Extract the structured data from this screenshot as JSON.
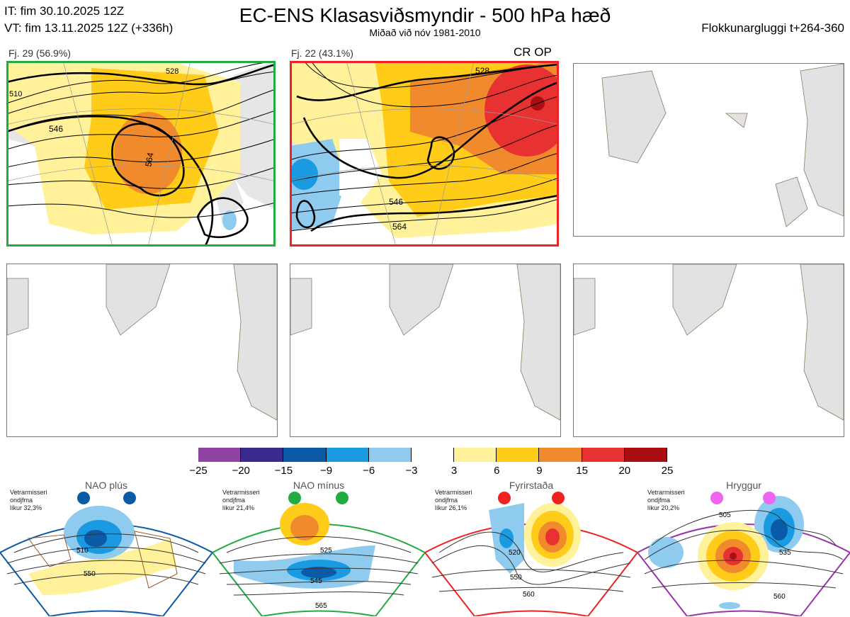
{
  "header": {
    "it_line": "IT: fim 30.10.2025 12Z",
    "vt_line": "VT: fim 13.11.2025 12Z  (+336h)",
    "title": "EC-ENS Klasasviðsmyndir - 500 hPa hæð",
    "subtitle": "Miðað við nóv 1981-2010",
    "window_label": "Flokkunargluggi t+264-360"
  },
  "panels": [
    {
      "label": "Fj. 29 (56.9%)",
      "border_color": "#22aa44",
      "contours": [
        "510",
        "528",
        "546",
        "564"
      ]
    },
    {
      "label": "Fj. 22 (43.1%)",
      "border_color": "#ee2222",
      "op_label": "CR OP",
      "contours": [
        "528",
        "546",
        "564"
      ]
    }
  ],
  "colorbar": {
    "ticks": [
      "−25",
      "−20",
      "−15",
      "−9",
      "−6",
      "−3",
      "3",
      "6",
      "9",
      "15",
      "20",
      "25"
    ],
    "colors": [
      "#8e44a0",
      "#3b2a8e",
      "#0b5aa8",
      "#1a9ae0",
      "#8ecbef",
      "#ffffff",
      "#fff29a",
      "#ffcc1a",
      "#f18a2c",
      "#e83232",
      "#a80e12"
    ]
  },
  "regimes": [
    {
      "title": "NAO plús",
      "note_line1": "Vetrarmisseri",
      "note_line2": "ondjfma",
      "note_line3": "líkur 32,3%",
      "color": "#0b5aa8",
      "labels": [
        "510",
        "550"
      ]
    },
    {
      "title": "NAO mínus",
      "note_line1": "Vetrarmisseri",
      "note_line2": "ondjfma",
      "note_line3": "líkur 21,4%",
      "color": "#22aa44",
      "labels": [
        "525",
        "545",
        "565"
      ]
    },
    {
      "title": "Fyrirstaða",
      "note_line1": "Vetrarmisseri",
      "note_line2": "ondjfma",
      "note_line3": "líkur 26,1%",
      "color": "#ee2222",
      "labels": [
        "520",
        "550",
        "560"
      ]
    },
    {
      "title": "Hryggur",
      "note_line1": "Vetrarmisseri",
      "note_line2": "ondjfma",
      "note_line3": "líkur 20,2%",
      "color": "#ee66ee",
      "labels": [
        "505",
        "535",
        "560"
      ]
    }
  ]
}
